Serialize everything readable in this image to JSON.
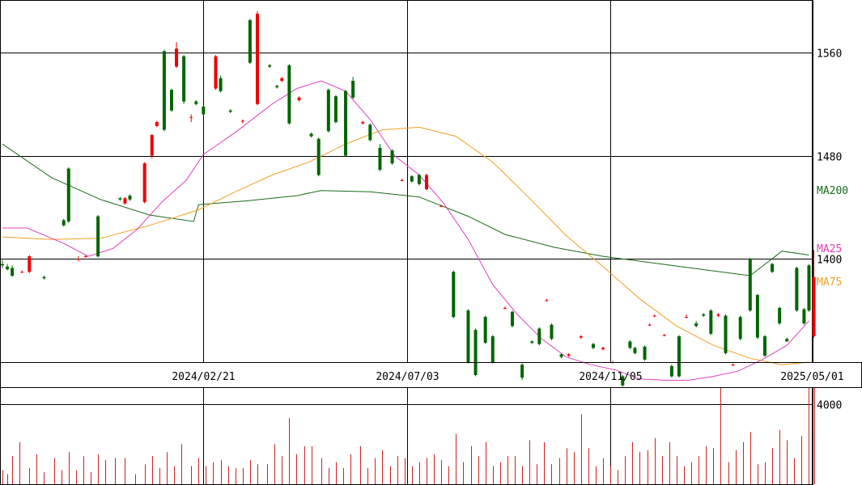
{
  "chart_data": {
    "type": "candlestick",
    "price_axis": {
      "ylim": [
        1320,
        1600
      ],
      "ticks": [
        1400,
        1480,
        1560
      ],
      "tick_labels": [
        "1400",
        "1480",
        "1560"
      ]
    },
    "volume_axis": {
      "ylim": [
        0,
        4800
      ],
      "ticks": [
        4000
      ],
      "tick_labels": [
        "4000"
      ]
    },
    "x_axis": {
      "n_sessions": 330,
      "tick_index": [
        82,
        165,
        248,
        330
      ],
      "tick_labels": [
        "2024/02/21",
        "2024/07/03",
        "2024/11/05",
        "2025/05/01"
      ]
    },
    "colors": {
      "up": "#ee0000",
      "down": "#006600",
      "volume": "#cc2222",
      "grid": "#000000",
      "ma25": "#e040c0",
      "ma75": "#f0a020",
      "ma200": "#1a6b1a"
    },
    "legend": {
      "ma200": "MA200",
      "ma25": "MA25",
      "ma75": "MA75"
    },
    "moving_averages": {
      "ma200": [
        [
          0,
          1489
        ],
        [
          20,
          1463
        ],
        [
          40,
          1446
        ],
        [
          60,
          1434
        ],
        [
          78,
          1429
        ],
        [
          80,
          1442
        ],
        [
          100,
          1445
        ],
        [
          120,
          1449
        ],
        [
          130,
          1453
        ],
        [
          150,
          1452
        ],
        [
          170,
          1448
        ],
        [
          190,
          1433
        ],
        [
          205,
          1419
        ],
        [
          225,
          1409
        ],
        [
          245,
          1402
        ],
        [
          265,
          1397
        ],
        [
          285,
          1392
        ],
        [
          305,
          1387
        ],
        [
          318,
          1406
        ],
        [
          329,
          1403
        ]
      ],
      "ma25": [
        [
          0,
          1424
        ],
        [
          10,
          1424
        ],
        [
          25,
          1412
        ],
        [
          35,
          1402
        ],
        [
          45,
          1408
        ],
        [
          55,
          1423
        ],
        [
          65,
          1444
        ],
        [
          75,
          1461
        ],
        [
          82,
          1481
        ],
        [
          95,
          1498
        ],
        [
          110,
          1520
        ],
        [
          120,
          1532
        ],
        [
          130,
          1538
        ],
        [
          140,
          1530
        ],
        [
          150,
          1508
        ],
        [
          160,
          1480
        ],
        [
          170,
          1465
        ],
        [
          180,
          1443
        ],
        [
          190,
          1415
        ],
        [
          200,
          1380
        ],
        [
          210,
          1357
        ],
        [
          220,
          1338
        ],
        [
          230,
          1324
        ],
        [
          240,
          1318
        ],
        [
          250,
          1314
        ],
        [
          260,
          1307
        ],
        [
          270,
          1306
        ],
        [
          280,
          1306
        ],
        [
          290,
          1309
        ],
        [
          300,
          1313
        ],
        [
          310,
          1322
        ],
        [
          320,
          1333
        ],
        [
          329,
          1352
        ]
      ],
      "ma75": [
        [
          0,
          1417
        ],
        [
          20,
          1415
        ],
        [
          40,
          1416
        ],
        [
          60,
          1426
        ],
        [
          80,
          1438
        ],
        [
          95,
          1452
        ],
        [
          110,
          1465
        ],
        [
          125,
          1475
        ],
        [
          140,
          1489
        ],
        [
          155,
          1500
        ],
        [
          170,
          1502
        ],
        [
          185,
          1495
        ],
        [
          200,
          1475
        ],
        [
          215,
          1447
        ],
        [
          230,
          1418
        ],
        [
          245,
          1394
        ],
        [
          260,
          1369
        ],
        [
          275,
          1348
        ],
        [
          290,
          1333
        ],
        [
          305,
          1323
        ],
        [
          318,
          1318
        ],
        [
          329,
          1320
        ]
      ]
    },
    "candles": [
      [
        0,
        1396,
        1395,
        1399,
        1393
      ],
      [
        2,
        1394,
        1392,
        1396,
        1391
      ],
      [
        4,
        1393,
        1387,
        1395,
        1386
      ],
      [
        8,
        1390,
        1390,
        1391,
        1389
      ],
      [
        11,
        1390,
        1402,
        1403,
        1389
      ],
      [
        17,
        1386,
        1385,
        1387,
        1384
      ],
      [
        25,
        1430,
        1426,
        1431,
        1425
      ],
      [
        27,
        1470,
        1429,
        1471,
        1428
      ],
      [
        31,
        1400,
        1400,
        1402,
        1398
      ],
      [
        34,
        1402,
        1402,
        1403,
        1401
      ],
      [
        39,
        1433,
        1402,
        1434,
        1401
      ],
      [
        48,
        1447,
        1446,
        1448,
        1445
      ],
      [
        50,
        1443,
        1447,
        1448,
        1442
      ],
      [
        52,
        1449,
        1446,
        1450,
        1445
      ],
      [
        58,
        1444,
        1474,
        1475,
        1443
      ],
      [
        61,
        1480,
        1496,
        1497,
        1478
      ],
      [
        63,
        1503,
        1506,
        1507,
        1502
      ],
      [
        66,
        1561,
        1500,
        1562,
        1499
      ],
      [
        69,
        1531,
        1515,
        1532,
        1514
      ],
      [
        71,
        1549,
        1563,
        1568,
        1548
      ],
      [
        74,
        1557,
        1522,
        1558,
        1520
      ],
      [
        77,
        1510,
        1510,
        1512,
        1506
      ],
      [
        79,
        1522,
        1520,
        1523,
        1519
      ],
      [
        82,
        1518,
        1512,
        1519,
        1511
      ],
      [
        87,
        1532,
        1557,
        1558,
        1531
      ],
      [
        89,
        1540,
        1530,
        1542,
        1529
      ],
      [
        93,
        1515,
        1514,
        1516,
        1513
      ],
      [
        98,
        1507,
        1507,
        1508,
        1505
      ],
      [
        101,
        1585,
        1552,
        1586,
        1551
      ],
      [
        104,
        1520,
        1590,
        1592,
        1519
      ],
      [
        109,
        1550,
        1549,
        1551,
        1548
      ],
      [
        112,
        1534,
        1533,
        1535,
        1532
      ],
      [
        114,
        1538,
        1540,
        1541,
        1537
      ],
      [
        117,
        1550,
        1505,
        1551,
        1504
      ],
      [
        121,
        1523,
        1525,
        1526,
        1522
      ],
      [
        126,
        1497,
        1495,
        1498,
        1494
      ],
      [
        129,
        1493,
        1465,
        1494,
        1464
      ],
      [
        133,
        1531,
        1499,
        1532,
        1498
      ],
      [
        136,
        1526,
        1506,
        1527,
        1505
      ],
      [
        140,
        1530,
        1480,
        1531,
        1479
      ],
      [
        143,
        1538,
        1525,
        1541,
        1524
      ],
      [
        147,
        1505,
        1506,
        1507,
        1504
      ],
      [
        150,
        1504,
        1492,
        1505,
        1491
      ],
      [
        154,
        1486,
        1469,
        1489,
        1468
      ],
      [
        159,
        1484,
        1474,
        1485,
        1473
      ],
      [
        163,
        1461,
        1461,
        1462,
        1460
      ],
      [
        167,
        1464,
        1460,
        1465,
        1459
      ],
      [
        170,
        1465,
        1458,
        1466,
        1457
      ],
      [
        173,
        1454,
        1465,
        1466,
        1453
      ],
      [
        179,
        1441,
        1441,
        1442,
        1440
      ],
      [
        184,
        1390,
        1355,
        1391,
        1354
      ],
      [
        190,
        1360,
        1320,
        1361,
        1319
      ],
      [
        193,
        1345,
        1310,
        1346,
        1309
      ],
      [
        197,
        1355,
        1335,
        1356,
        1334
      ],
      [
        200,
        1340,
        1320,
        1341,
        1319
      ],
      [
        205,
        1362,
        1362,
        1363,
        1361
      ],
      [
        208,
        1359,
        1348,
        1360,
        1347
      ],
      [
        212,
        1318,
        1308,
        1319,
        1306
      ],
      [
        216,
        1336,
        1335,
        1337,
        1334
      ],
      [
        219,
        1346,
        1334,
        1347,
        1333
      ],
      [
        222,
        1368,
        1368,
        1369,
        1367
      ],
      [
        224,
        1349,
        1338,
        1350,
        1337
      ],
      [
        228,
        1326,
        1324,
        1327,
        1323
      ],
      [
        231,
        1325,
        1326,
        1327,
        1324
      ],
      [
        236,
        1339,
        1340,
        1341,
        1338
      ],
      [
        241,
        1334,
        1331,
        1335,
        1330
      ],
      [
        245,
        1330,
        1331,
        1332,
        1329
      ],
      [
        249,
        1320,
        1320,
        1321,
        1319
      ],
      [
        253,
        1309,
        1302,
        1310,
        1301
      ],
      [
        256,
        1336,
        1331,
        1337,
        1330
      ],
      [
        258,
        1331,
        1327,
        1332,
        1326
      ],
      [
        262,
        1332,
        1322,
        1333,
        1321
      ],
      [
        264,
        1349,
        1349,
        1350,
        1348
      ],
      [
        266,
        1356,
        1356,
        1357,
        1355
      ],
      [
        270,
        1341,
        1341,
        1342,
        1340
      ],
      [
        273,
        1317,
        1309,
        1318,
        1308
      ],
      [
        276,
        1340,
        1309,
        1341,
        1308
      ],
      [
        279,
        1355,
        1355,
        1357,
        1354
      ],
      [
        283,
        1350,
        1348,
        1352,
        1347
      ],
      [
        286,
        1357,
        1356,
        1358,
        1355
      ],
      [
        289,
        1360,
        1342,
        1361,
        1341
      ],
      [
        292,
        1356,
        1357,
        1358,
        1355
      ],
      [
        295,
        1356,
        1327,
        1357,
        1326
      ],
      [
        298,
        1318,
        1318,
        1319,
        1317
      ],
      [
        301,
        1355,
        1338,
        1356,
        1337
      ],
      [
        305,
        1400,
        1360,
        1401,
        1359
      ],
      [
        308,
        1372,
        1339,
        1373,
        1338
      ],
      [
        311,
        1340,
        1325,
        1341,
        1324
      ],
      [
        314,
        1396,
        1390,
        1397,
        1389
      ],
      [
        317,
        1362,
        1350,
        1363,
        1349
      ],
      [
        320,
        1338,
        1336,
        1339,
        1337
      ],
      [
        324,
        1393,
        1360,
        1394,
        1359
      ],
      [
        327,
        1361,
        1350,
        1362,
        1349
      ],
      [
        329,
        1395,
        1360,
        1396,
        1359
      ],
      [
        331,
        1340,
        1386,
        1407,
        1339
      ]
    ],
    "volumes": [
      [
        0,
        700
      ],
      [
        2,
        500
      ],
      [
        4,
        1400
      ],
      [
        7,
        2100
      ],
      [
        11,
        800
      ],
      [
        14,
        1500
      ],
      [
        17,
        600
      ],
      [
        21,
        1300
      ],
      [
        24,
        700
      ],
      [
        27,
        1600
      ],
      [
        30,
        700
      ],
      [
        33,
        1400
      ],
      [
        36,
        600
      ],
      [
        39,
        1500
      ],
      [
        42,
        1200
      ],
      [
        46,
        1300
      ],
      [
        50,
        1300
      ],
      [
        54,
        500
      ],
      [
        58,
        1000
      ],
      [
        61,
        1400
      ],
      [
        64,
        800
      ],
      [
        67,
        1600
      ],
      [
        70,
        900
      ],
      [
        73,
        2000
      ],
      [
        77,
        900
      ],
      [
        80,
        1300
      ],
      [
        83,
        900
      ],
      [
        86,
        1100
      ],
      [
        89,
        1200
      ],
      [
        92,
        900
      ],
      [
        95,
        800
      ],
      [
        98,
        800
      ],
      [
        101,
        1200
      ],
      [
        104,
        1000
      ],
      [
        108,
        1000
      ],
      [
        111,
        2000
      ],
      [
        114,
        1400
      ],
      [
        117,
        3300
      ],
      [
        120,
        1500
      ],
      [
        123,
        1900
      ],
      [
        126,
        1900
      ],
      [
        130,
        1300
      ],
      [
        133,
        800
      ],
      [
        136,
        1100
      ],
      [
        139,
        800
      ],
      [
        142,
        1500
      ],
      [
        146,
        1900
      ],
      [
        149,
        800
      ],
      [
        152,
        1300
      ],
      [
        155,
        1700
      ],
      [
        158,
        900
      ],
      [
        161,
        1400
      ],
      [
        164,
        1300
      ],
      [
        167,
        900
      ],
      [
        170,
        1100
      ],
      [
        173,
        1300
      ],
      [
        176,
        1500
      ],
      [
        179,
        1200
      ],
      [
        182,
        900
      ],
      [
        185,
        2500
      ],
      [
        188,
        1100
      ],
      [
        191,
        1900
      ],
      [
        194,
        1400
      ],
      [
        197,
        2100
      ],
      [
        200,
        900
      ],
      [
        203,
        1100
      ],
      [
        206,
        1400
      ],
      [
        209,
        1400
      ],
      [
        212,
        900
      ],
      [
        215,
        2200
      ],
      [
        218,
        1000
      ],
      [
        221,
        2100
      ],
      [
        224,
        1000
      ],
      [
        227,
        1300
      ],
      [
        230,
        1800
      ],
      [
        233,
        1600
      ],
      [
        236,
        3500
      ],
      [
        239,
        1800
      ],
      [
        242,
        900
      ],
      [
        245,
        1300
      ],
      [
        248,
        900
      ],
      [
        251,
        700
      ],
      [
        254,
        1400
      ],
      [
        257,
        2100
      ],
      [
        260,
        1600
      ],
      [
        263,
        1700
      ],
      [
        266,
        2300
      ],
      [
        269,
        1400
      ],
      [
        272,
        2100
      ],
      [
        275,
        1400
      ],
      [
        278,
        900
      ],
      [
        281,
        1100
      ],
      [
        284,
        1400
      ],
      [
        287,
        1900
      ],
      [
        290,
        1800
      ],
      [
        293,
        4800
      ],
      [
        296,
        1100
      ],
      [
        299,
        1700
      ],
      [
        302,
        2100
      ],
      [
        305,
        2600
      ],
      [
        308,
        1000
      ],
      [
        311,
        1100
      ],
      [
        314,
        1800
      ],
      [
        317,
        2700
      ],
      [
        320,
        2200
      ],
      [
        323,
        1300
      ],
      [
        326,
        2400
      ],
      [
        329,
        5000
      ],
      [
        331,
        5300
      ]
    ]
  }
}
